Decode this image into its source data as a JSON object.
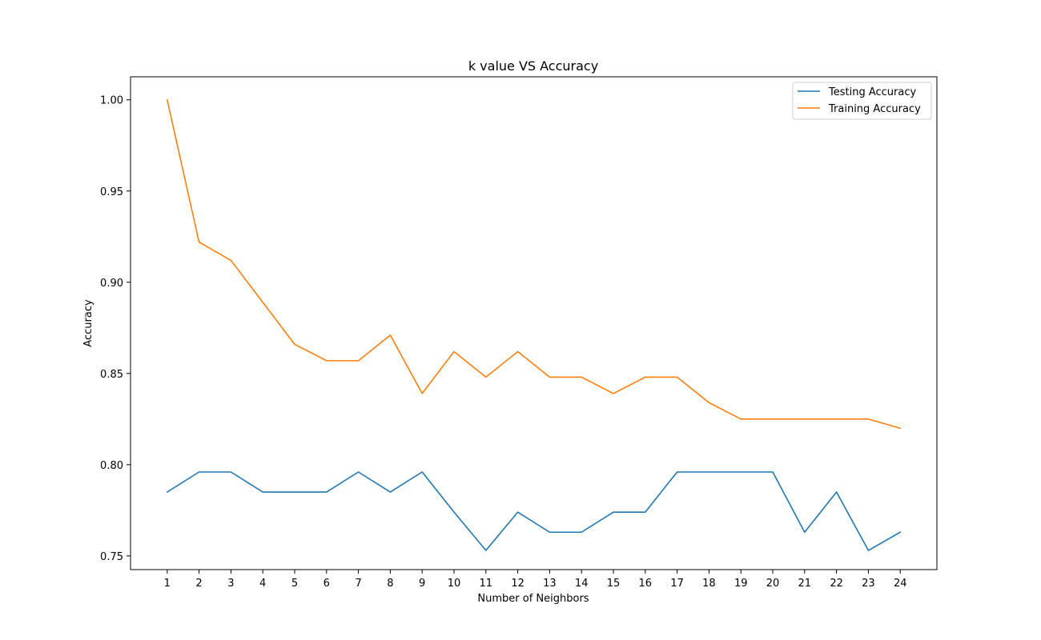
{
  "chart_data": {
    "type": "line",
    "title": "k value VS Accuracy",
    "xlabel": "Number of Neighbors",
    "ylabel": "Accuracy",
    "x": [
      1,
      2,
      3,
      4,
      5,
      6,
      7,
      8,
      9,
      10,
      11,
      12,
      13,
      14,
      15,
      16,
      17,
      18,
      19,
      20,
      21,
      22,
      23,
      24
    ],
    "xlim": [
      -0.15,
      25.15
    ],
    "ylim": [
      0.7425,
      1.0126
    ],
    "yticks": [
      0.75,
      0.8,
      0.85,
      0.9,
      0.95,
      1.0
    ],
    "ytick_labels": [
      "0.75",
      "0.80",
      "0.85",
      "0.90",
      "0.95",
      "1.00"
    ],
    "grid": false,
    "legend_position": "upper right",
    "series": [
      {
        "name": "Testing Accuracy",
        "color": "#1f77b4",
        "values": [
          0.785,
          0.796,
          0.796,
          0.785,
          0.785,
          0.785,
          0.796,
          0.785,
          0.796,
          0.774,
          0.753,
          0.774,
          0.763,
          0.763,
          0.774,
          0.774,
          0.796,
          0.796,
          0.796,
          0.796,
          0.763,
          0.785,
          0.753,
          0.763
        ]
      },
      {
        "name": "Training Accuracy",
        "color": "#ff7f0e",
        "values": [
          1.0,
          0.922,
          0.912,
          0.889,
          0.866,
          0.857,
          0.857,
          0.871,
          0.839,
          0.862,
          0.848,
          0.862,
          0.848,
          0.848,
          0.839,
          0.848,
          0.848,
          0.834,
          0.825,
          0.825,
          0.825,
          0.825,
          0.825,
          0.82
        ]
      }
    ]
  }
}
